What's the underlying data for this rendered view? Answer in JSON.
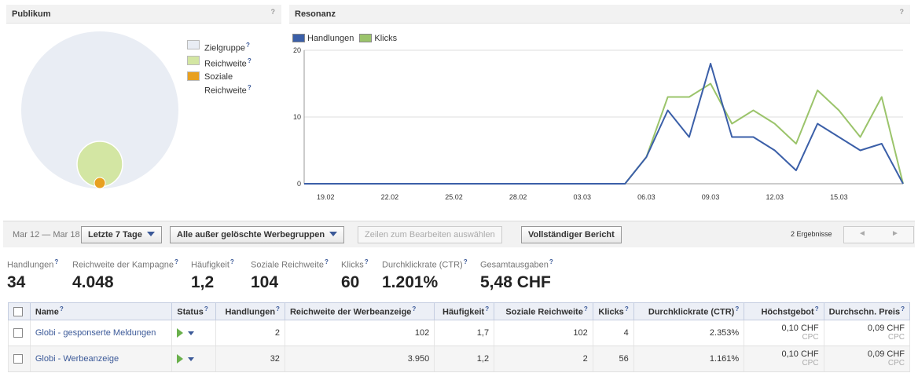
{
  "publikum": {
    "title": "Publikum",
    "help": "?",
    "legend": [
      {
        "label": "Zielgruppe",
        "color": "#e9edf4"
      },
      {
        "label": "Reichweite",
        "color": "#d3e6a3"
      },
      {
        "label": "Soziale Reichweite",
        "label_lines": [
          "Soziale",
          "Reichweite"
        ],
        "color": "#e8a020"
      }
    ]
  },
  "resonanz": {
    "title": "Resonanz",
    "help": "?"
  },
  "chart_data": {
    "type": "line",
    "x_tick_labels": [
      "19.02",
      "22.02",
      "25.02",
      "28.02",
      "03.03",
      "06.03",
      "09.03",
      "12.03",
      "15.03"
    ],
    "x": [
      "18.02",
      "19.02",
      "20.02",
      "21.02",
      "22.02",
      "23.02",
      "24.02",
      "25.02",
      "26.02",
      "27.02",
      "28.02",
      "01.03",
      "02.03",
      "03.03",
      "04.03",
      "05.03",
      "06.03",
      "07.03",
      "08.03",
      "09.03",
      "10.03",
      "11.03",
      "12.03",
      "13.03",
      "14.03",
      "15.03",
      "16.03",
      "17.03",
      "18.03"
    ],
    "series": [
      {
        "name": "Handlungen",
        "color": "#3b5fa8",
        "values": [
          0,
          0,
          0,
          0,
          0,
          0,
          0,
          0,
          0,
          0,
          0,
          0,
          0,
          0,
          0,
          0,
          4,
          11,
          7,
          18,
          7,
          7,
          5,
          2,
          9,
          7,
          5,
          6,
          0
        ]
      },
      {
        "name": "Klicks",
        "color": "#9bc46b",
        "values": [
          0,
          0,
          0,
          0,
          0,
          0,
          0,
          0,
          0,
          0,
          0,
          0,
          0,
          0,
          0,
          0,
          4,
          13,
          13,
          15,
          9,
          11,
          9,
          6,
          14,
          11,
          7,
          13,
          0
        ]
      }
    ],
    "ylim": [
      0,
      20
    ],
    "y_ticks": [
      0,
      10,
      20
    ],
    "grid": true,
    "legend": "top-left"
  },
  "toolbar": {
    "date_range": "Mar 12 — Mar 18",
    "period_label": "Letzte 7 Tage",
    "filter_label": "Alle außer gelöschte Werbegruppen",
    "edit_rows_label": "Zeilen zum Bearbeiten auswählen",
    "full_report_label": "Vollständiger Bericht",
    "results": "2 Ergebnisse",
    "prev_icon": "◄",
    "next_icon": "►"
  },
  "stats": [
    {
      "label": "Handlungen",
      "value": "34"
    },
    {
      "label": "Reichweite der Kampagne",
      "value": "4.048"
    },
    {
      "label": "Häufigkeit",
      "value": "1,2"
    },
    {
      "label": "Soziale Reichweite",
      "value": "104"
    },
    {
      "label": "Klicks",
      "value": "60"
    },
    {
      "label": "Durchklickrate (CTR)",
      "value": "1.201%"
    },
    {
      "label": "Gesamtausgaben",
      "value": "5,48 CHF"
    }
  ],
  "table": {
    "columns": [
      "Name",
      "Status",
      "Handlungen",
      "Reichweite der Werbeanzeige",
      "Häufigkeit",
      "Soziale Reichweite",
      "Klicks",
      "Durchklickrate (CTR)",
      "Höchstgebot",
      "Durchschn. Preis"
    ],
    "rows": [
      {
        "name": "Globi - gesponserte Meldungen",
        "handlungen": "2",
        "reichweite": "102",
        "haeufigkeit": "1,7",
        "soziale": "102",
        "klicks": "4",
        "ctr": "2.353%",
        "gebot": "0,10 CHF",
        "gebot_sub": "CPC",
        "preis": "0,09 CHF",
        "preis_sub": "CPC"
      },
      {
        "name": "Globi - Werbeanzeige",
        "handlungen": "32",
        "reichweite": "3.950",
        "haeufigkeit": "1,2",
        "soziale": "2",
        "klicks": "56",
        "ctr": "1.161%",
        "gebot": "0,10 CHF",
        "gebot_sub": "CPC",
        "preis": "0,09 CHF",
        "preis_sub": "CPC"
      }
    ]
  }
}
